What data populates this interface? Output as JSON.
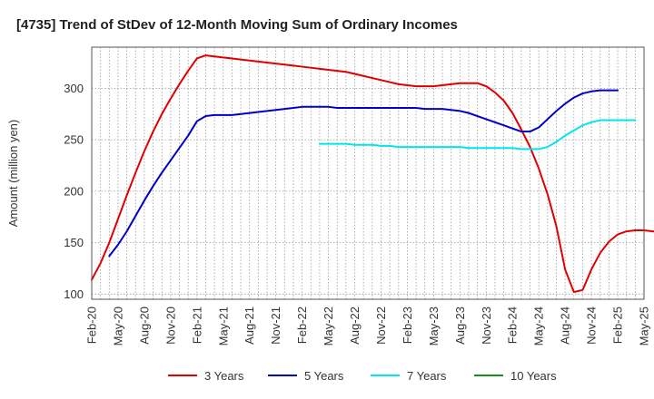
{
  "chart_data": {
    "type": "line",
    "title": "[4735]  Trend of StDev of 12-Month Moving Sum of Ordinary Incomes",
    "ylabel": "Amount (million yen)",
    "xlabel": "",
    "ylim": [
      95,
      340
    ],
    "xlim": [
      "2020-02",
      "2025-05"
    ],
    "yticks": [
      100,
      150,
      200,
      250,
      300
    ],
    "xtick_labels": [
      "Feb-20",
      "May-20",
      "Aug-20",
      "Nov-20",
      "Feb-21",
      "May-21",
      "Aug-21",
      "Nov-21",
      "Feb-22",
      "May-22",
      "Aug-22",
      "Nov-22",
      "Feb-23",
      "May-23",
      "Aug-23",
      "Nov-23",
      "Feb-24",
      "May-24",
      "Aug-24",
      "Nov-24",
      "Feb-25",
      "May-25"
    ],
    "grid": true,
    "legend_position": "bottom",
    "series": [
      {
        "name": "3 Years",
        "color": "#e00000",
        "start": "2020-02",
        "values": [
          114,
          130,
          150,
          173,
          196,
          218,
          239,
          258,
          275,
          290,
          304,
          317,
          329,
          332,
          331,
          330,
          329,
          328,
          327,
          326,
          325,
          324,
          323,
          322,
          321,
          320,
          319,
          318,
          317,
          316,
          314,
          312,
          310,
          308,
          306,
          304,
          303,
          302,
          302,
          302,
          303,
          304,
          305,
          305,
          305,
          302,
          296,
          288,
          276,
          260,
          243,
          222,
          197,
          166,
          124,
          102,
          104,
          124,
          140,
          151,
          158,
          161,
          162,
          162,
          161,
          160,
          160,
          161
        ]
      },
      {
        "name": "5 Years",
        "color": "#0000cc",
        "start": "2020-04",
        "values": [
          137,
          148,
          161,
          176,
          191,
          205,
          218,
          230,
          242,
          254,
          268,
          273,
          274,
          274,
          274,
          275,
          276,
          277,
          278,
          279,
          280,
          281,
          282,
          282,
          282,
          282,
          281,
          281,
          281,
          281,
          281,
          281,
          281,
          281,
          281,
          281,
          280,
          280,
          280,
          279,
          278,
          276,
          273,
          270,
          267,
          264,
          261,
          258,
          258,
          262,
          270,
          278,
          285,
          291,
          295,
          297,
          298,
          298,
          298
        ]
      },
      {
        "name": "7 Years",
        "color": "#00e5ee",
        "start": "2022-04",
        "values": [
          246,
          246,
          246,
          246,
          245,
          245,
          245,
          244,
          244,
          243,
          243,
          243,
          243,
          243,
          243,
          243,
          243,
          242,
          242,
          242,
          242,
          242,
          242,
          241,
          241,
          241,
          243,
          248,
          254,
          259,
          264,
          267,
          269,
          269,
          269,
          269,
          269
        ]
      },
      {
        "name": "10 Years",
        "color": "#1a8c1a",
        "start": null,
        "values": []
      }
    ]
  }
}
